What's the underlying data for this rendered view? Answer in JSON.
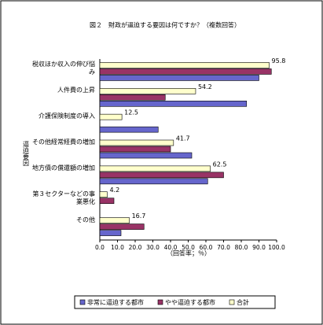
{
  "chart_data": {
    "type": "bar",
    "orientation": "horizontal",
    "title": "図２　財政が逼迫する要因は何ですか？（複数回答）",
    "y_label": "逼迫要因",
    "x_label": "（回答率；％）",
    "categories": [
      "税収ほか収入の伸び悩み",
      "人件費の上昇",
      "介護保険制度の導入",
      "その他経常経費の増加",
      "地方債の償還額の増加",
      "第３セクターなどの事業悪化",
      "その他"
    ],
    "series": [
      {
        "name": "非常に逼迫する都市",
        "color": "#6666cc",
        "values": [
          90,
          83,
          33,
          52,
          61,
          0,
          12
        ]
      },
      {
        "name": "やや逼迫する都市",
        "color": "#993366",
        "values": [
          97,
          37,
          0,
          40,
          70,
          8,
          25
        ]
      },
      {
        "name": "合計",
        "color": "#ffffcc",
        "values": [
          95.8,
          54.2,
          12.5,
          41.7,
          62.5,
          4.2,
          16.7
        ]
      }
    ],
    "xlim": [
      0,
      100
    ],
    "xticks": [
      {
        "value": 0,
        "label": "0.0"
      },
      {
        "value": 10,
        "label": "10.0"
      },
      {
        "value": 20,
        "label": "20.0"
      },
      {
        "value": 30,
        "label": "30.0"
      },
      {
        "value": 40,
        "label": "40.0"
      },
      {
        "value": 50,
        "label": "50.0"
      },
      {
        "value": 60,
        "label": "60.0"
      },
      {
        "value": 70,
        "label": "70.0"
      },
      {
        "value": 80,
        "label": "80.0"
      },
      {
        "value": 90,
        "label": "90.0"
      },
      {
        "value": 100,
        "label": "100.0"
      }
    ],
    "labeled_series": 2,
    "legend": "bottom"
  }
}
